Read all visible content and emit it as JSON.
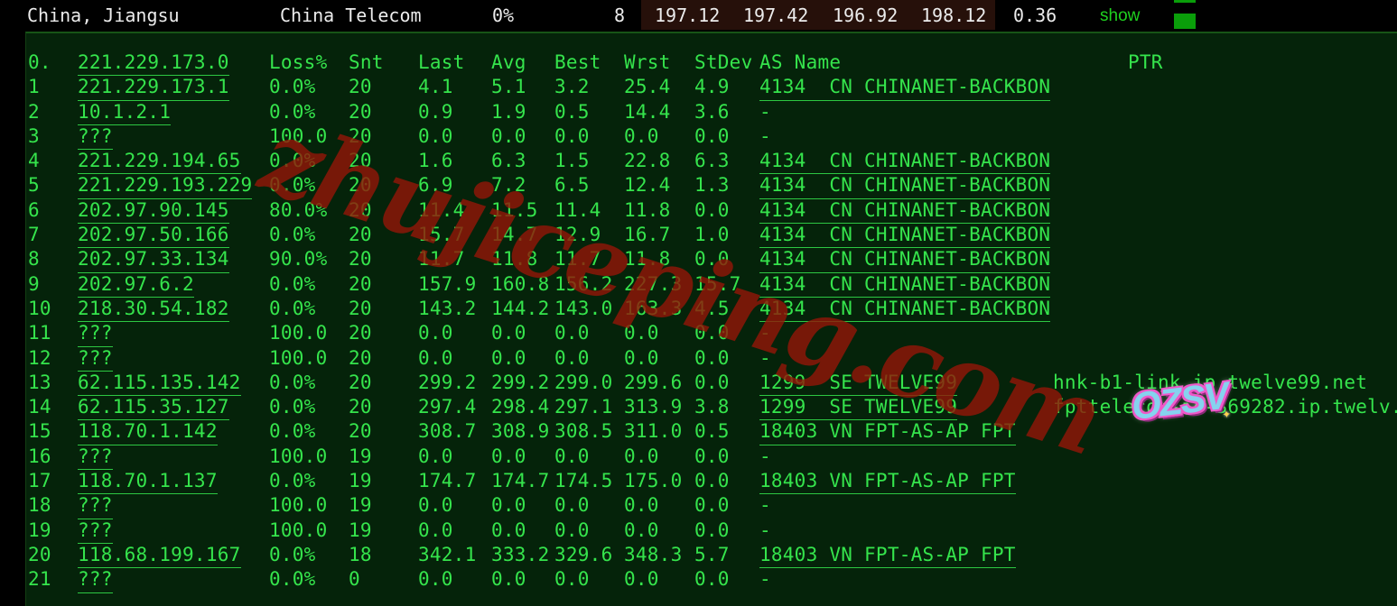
{
  "topbar": {
    "location": "China, Jiangsu",
    "isp": "China Telecom",
    "loss": "0%",
    "sent": "8",
    "latency_values": [
      "197.12",
      "197.42",
      "196.92",
      "198.12"
    ],
    "stdev": "0.36",
    "show_label": "show"
  },
  "table": {
    "header": {
      "hop": "0.",
      "host": "221.229.173.0",
      "loss": "Loss%",
      "snt": "Snt",
      "last": "Last",
      "avg": "Avg",
      "best": "Best",
      "wrst": "Wrst",
      "stdev": "StDev",
      "asn": "AS Name",
      "ptr": "PTR"
    },
    "rows": [
      {
        "hop": "1",
        "host": "221.229.173.1",
        "loss": "0.0%",
        "snt": "20",
        "last": "4.1",
        "avg": "5.1",
        "best": "3.2",
        "wrst": "25.4",
        "stdev": "4.9",
        "asn": "4134  CN CHINANET-BACKBON",
        "ptr": ""
      },
      {
        "hop": "2",
        "host": "10.1.2.1",
        "loss": "0.0%",
        "snt": "20",
        "last": "0.9",
        "avg": "1.9",
        "best": "0.5",
        "wrst": "14.4",
        "stdev": "3.6",
        "asn": "-",
        "ptr": ""
      },
      {
        "hop": "3",
        "host": "???",
        "loss": "100.0",
        "snt": "20",
        "last": "0.0",
        "avg": "0.0",
        "best": "0.0",
        "wrst": "0.0",
        "stdev": "0.0",
        "asn": "-",
        "ptr": ""
      },
      {
        "hop": "4",
        "host": "221.229.194.65",
        "loss": "0.0%",
        "snt": "20",
        "last": "1.6",
        "avg": "6.3",
        "best": "1.5",
        "wrst": "22.8",
        "stdev": "6.3",
        "asn": "4134  CN CHINANET-BACKBON",
        "ptr": ""
      },
      {
        "hop": "5",
        "host": "221.229.193.229",
        "loss": "0.0%",
        "snt": "20",
        "last": "6.9",
        "avg": "7.2",
        "best": "6.5",
        "wrst": "12.4",
        "stdev": "1.3",
        "asn": "4134  CN CHINANET-BACKBON",
        "ptr": ""
      },
      {
        "hop": "6",
        "host": "202.97.90.145",
        "loss": "80.0%",
        "snt": "20",
        "last": "11.4",
        "avg": "11.5",
        "best": "11.4",
        "wrst": "11.8",
        "stdev": "0.0",
        "asn": "4134  CN CHINANET-BACKBON",
        "ptr": ""
      },
      {
        "hop": "7",
        "host": "202.97.50.166",
        "loss": "0.0%",
        "snt": "20",
        "last": "15.7",
        "avg": "14.7",
        "best": "12.9",
        "wrst": "16.7",
        "stdev": "1.0",
        "asn": "4134  CN CHINANET-BACKBON",
        "ptr": ""
      },
      {
        "hop": "8",
        "host": "202.97.33.134",
        "loss": "90.0%",
        "snt": "20",
        "last": "11.7",
        "avg": "11.8",
        "best": "11.7",
        "wrst": "11.8",
        "stdev": "0.0",
        "asn": "4134  CN CHINANET-BACKBON",
        "ptr": ""
      },
      {
        "hop": "9",
        "host": "202.97.6.2",
        "loss": "0.0%",
        "snt": "20",
        "last": "157.9",
        "avg": "160.8",
        "best": "156.2",
        "wrst": "227.3",
        "stdev": "15.7",
        "asn": "4134  CN CHINANET-BACKBON",
        "ptr": ""
      },
      {
        "hop": "10",
        "host": "218.30.54.182",
        "loss": "0.0%",
        "snt": "20",
        "last": "143.2",
        "avg": "144.2",
        "best": "143.0",
        "wrst": "163.3",
        "stdev": "4.5",
        "asn": "4134  CN CHINANET-BACKBON",
        "ptr": ""
      },
      {
        "hop": "11",
        "host": "???",
        "loss": "100.0",
        "snt": "20",
        "last": "0.0",
        "avg": "0.0",
        "best": "0.0",
        "wrst": "0.0",
        "stdev": "0.0",
        "asn": "-",
        "ptr": ""
      },
      {
        "hop": "12",
        "host": "???",
        "loss": "100.0",
        "snt": "20",
        "last": "0.0",
        "avg": "0.0",
        "best": "0.0",
        "wrst": "0.0",
        "stdev": "0.0",
        "asn": "-",
        "ptr": ""
      },
      {
        "hop": "13",
        "host": "62.115.135.142",
        "loss": "0.0%",
        "snt": "20",
        "last": "299.2",
        "avg": "299.2",
        "best": "299.0",
        "wrst": "299.6",
        "stdev": "0.0",
        "asn": "1299  SE TWELVE99",
        "ptr": "hnk-b1-link.ip.twelve99.net"
      },
      {
        "hop": "14",
        "host": "62.115.35.127",
        "loss": "0.0%",
        "snt": "20",
        "last": "297.4",
        "avg": "298.4",
        "best": "297.1",
        "wrst": "313.9",
        "stdev": "3.8",
        "asn": "1299  SE TWELVE99",
        "ptr": "fpttelecom-ic-369282.ip.twelv."
      },
      {
        "hop": "15",
        "host": "118.70.1.142",
        "loss": "0.0%",
        "snt": "20",
        "last": "308.7",
        "avg": "308.9",
        "best": "308.5",
        "wrst": "311.0",
        "stdev": "0.5",
        "asn": "18403 VN FPT-AS-AP FPT",
        "ptr": ""
      },
      {
        "hop": "16",
        "host": "???",
        "loss": "100.0",
        "snt": "19",
        "last": "0.0",
        "avg": "0.0",
        "best": "0.0",
        "wrst": "0.0",
        "stdev": "0.0",
        "asn": "-",
        "ptr": ""
      },
      {
        "hop": "17",
        "host": "118.70.1.137",
        "loss": "0.0%",
        "snt": "19",
        "last": "174.7",
        "avg": "174.7",
        "best": "174.5",
        "wrst": "175.0",
        "stdev": "0.0",
        "asn": "18403 VN FPT-AS-AP FPT",
        "ptr": ""
      },
      {
        "hop": "18",
        "host": "???",
        "loss": "100.0",
        "snt": "19",
        "last": "0.0",
        "avg": "0.0",
        "best": "0.0",
        "wrst": "0.0",
        "stdev": "0.0",
        "asn": "-",
        "ptr": ""
      },
      {
        "hop": "19",
        "host": "???",
        "loss": "100.0",
        "snt": "19",
        "last": "0.0",
        "avg": "0.0",
        "best": "0.0",
        "wrst": "0.0",
        "stdev": "0.0",
        "asn": "-",
        "ptr": ""
      },
      {
        "hop": "20",
        "host": "118.68.199.167",
        "loss": "0.0%",
        "snt": "18",
        "last": "342.1",
        "avg": "333.2",
        "best": "329.6",
        "wrst": "348.3",
        "stdev": "5.7",
        "asn": "18403 VN FPT-AS-AP FPT",
        "ptr": ""
      },
      {
        "hop": "21",
        "host": "???",
        "loss": "0.0%",
        "snt": "0",
        "last": "0.0",
        "avg": "0.0",
        "best": "0.0",
        "wrst": "0.0",
        "stdev": "0.0",
        "asn": "-",
        "ptr": ""
      }
    ]
  },
  "watermark": "zhujiceping.com",
  "sticker": "OZSV",
  "colors": {
    "terminal_text": "#35e44c",
    "terminal_bg": "#05230a",
    "topbar_bg": "#000000",
    "topbar_text": "#ececec",
    "latency_cell_bg": "#26100a",
    "show_link": "#1fd11f",
    "indicator_square": "#0a9e0a",
    "watermark_red": "#941507"
  }
}
